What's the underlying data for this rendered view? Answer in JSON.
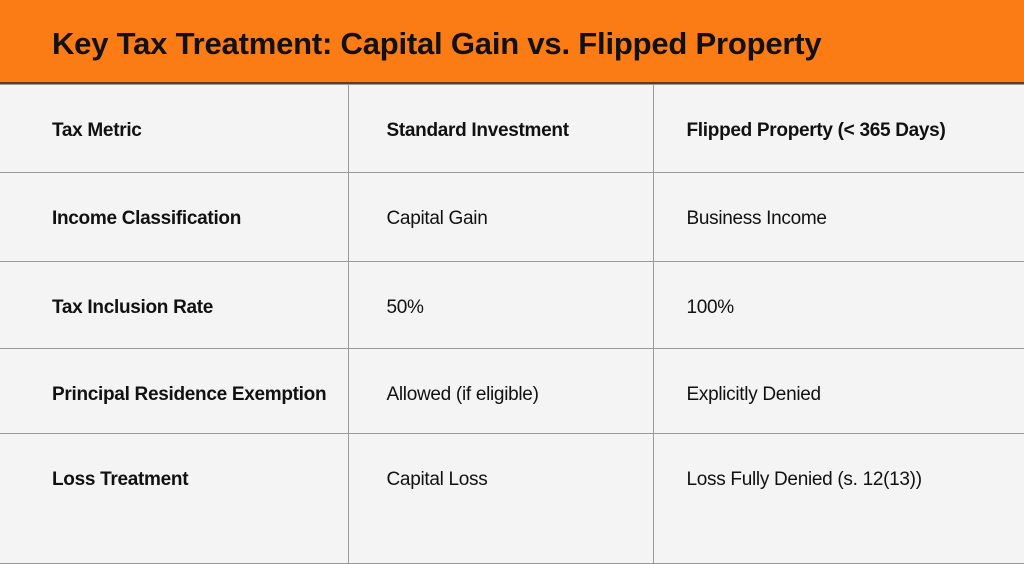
{
  "header": {
    "title": "Key Tax Treatment: Capital Gain vs. Flipped Property"
  },
  "table": {
    "columns": [
      "Tax Metric",
      "Standard Investment",
      "Flipped Property (< 365 Days)"
    ],
    "rows": [
      [
        "Income Classification",
        "Capital Gain",
        "Business Income"
      ],
      [
        "Tax Inclusion Rate",
        "50%",
        "100%"
      ],
      [
        "Principal Residence Exemption",
        "Allowed (if eligible)",
        "Explicitly Denied"
      ],
      [
        "Loss Treatment",
        "Capital Loss",
        "Loss Fully Denied (s. 12(13))"
      ]
    ]
  }
}
